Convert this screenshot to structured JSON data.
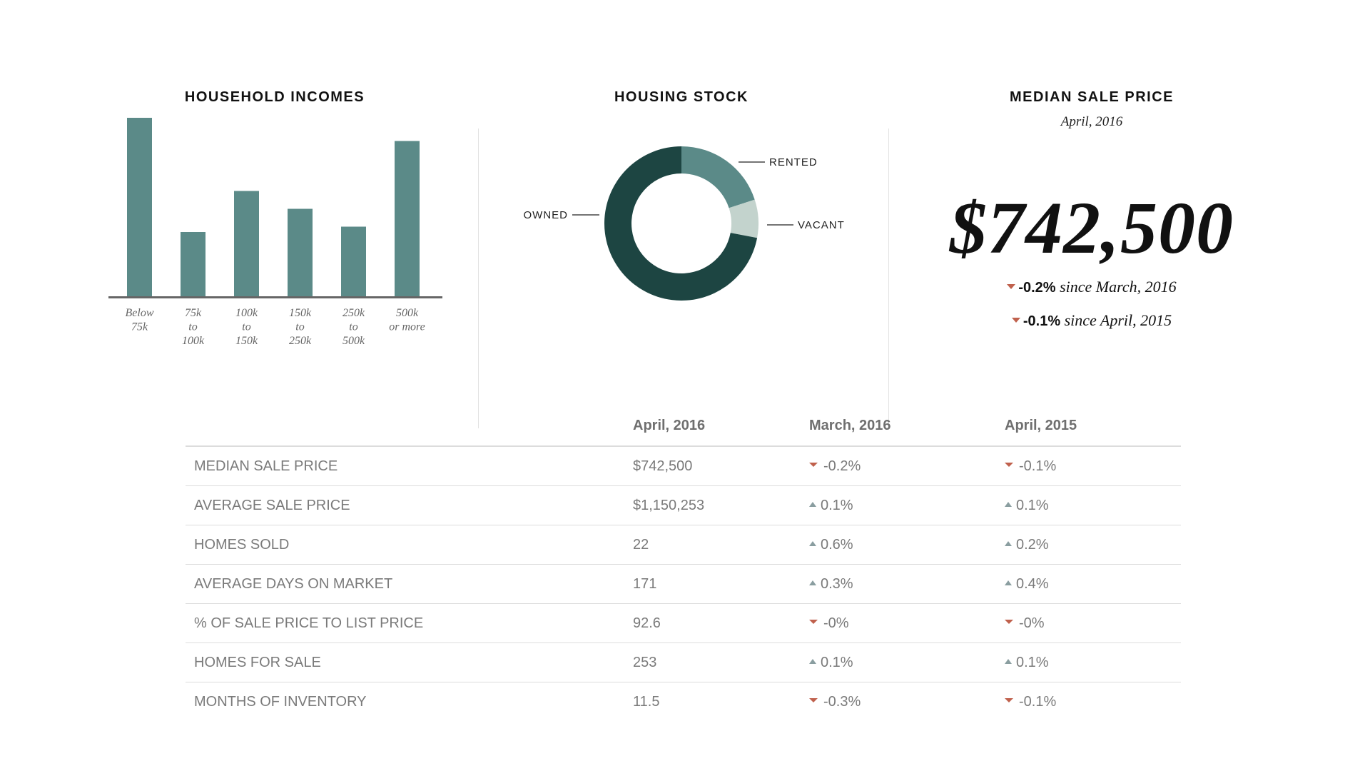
{
  "colors": {
    "bar": "#5b8a88",
    "owned": "#1d4542",
    "rented": "#5b8a88",
    "vacant": "#c3d3cd",
    "down": "#c0614d",
    "up": "#8a9ea0"
  },
  "incomes": {
    "title": "HOUSEHOLD INCOMES"
  },
  "housing": {
    "title": "HOUSING STOCK"
  },
  "price": {
    "title": "MEDIAN SALE PRICE",
    "date": "April, 2016",
    "value": "$742,500",
    "changes": [
      {
        "direction": "down",
        "value": "-0.2%",
        "text": " since March, 2016"
      },
      {
        "direction": "down",
        "value": "-0.1%",
        "text": " since April, 2015"
      }
    ]
  },
  "table": {
    "columns": [
      "",
      "April, 2016",
      "March, 2016",
      "April, 2015"
    ],
    "rows": [
      {
        "metric": "MEDIAN SALE PRICE",
        "current": "$742,500",
        "c1": {
          "dir": "down",
          "val": "-0.2%"
        },
        "c2": {
          "dir": "down",
          "val": "-0.1%"
        }
      },
      {
        "metric": "AVERAGE SALE PRICE",
        "current": "$1,150,253",
        "c1": {
          "dir": "up",
          "val": "0.1%"
        },
        "c2": {
          "dir": "up",
          "val": "0.1%"
        }
      },
      {
        "metric": "HOMES SOLD",
        "current": "22",
        "c1": {
          "dir": "up",
          "val": "0.6%"
        },
        "c2": {
          "dir": "up",
          "val": "0.2%"
        }
      },
      {
        "metric": "AVERAGE DAYS ON MARKET",
        "current": "171",
        "c1": {
          "dir": "up",
          "val": "0.3%"
        },
        "c2": {
          "dir": "up",
          "val": "0.4%"
        }
      },
      {
        "metric": "% OF SALE PRICE TO LIST PRICE",
        "current": "92.6",
        "c1": {
          "dir": "down",
          "val": "-0%"
        },
        "c2": {
          "dir": "down",
          "val": "-0%"
        }
      },
      {
        "metric": "HOMES FOR SALE",
        "current": "253",
        "c1": {
          "dir": "up",
          "val": "0.1%"
        },
        "c2": {
          "dir": "up",
          "val": "0.1%"
        }
      },
      {
        "metric": "MONTHS OF INVENTORY",
        "current": "11.5",
        "c1": {
          "dir": "down",
          "val": "-0.3%"
        },
        "c2": {
          "dir": "down",
          "val": "-0.1%"
        }
      }
    ]
  },
  "chart_data": [
    {
      "type": "bar",
      "title": "HOUSEHOLD INCOMES",
      "categories": [
        [
          "Below",
          "75k"
        ],
        [
          "75k",
          "to",
          "100k"
        ],
        [
          "100k",
          "to",
          "150k"
        ],
        [
          "150k",
          "to",
          "250k"
        ],
        [
          "250k",
          "to",
          "500k"
        ],
        [
          "500k",
          "or more"
        ]
      ],
      "values": [
        100,
        36,
        59,
        49,
        39,
        87
      ],
      "ylim": [
        0,
        100
      ],
      "grid": false,
      "y_axis_labels": false
    },
    {
      "type": "pie",
      "title": "HOUSING STOCK",
      "donut": true,
      "labels": [
        "RENTED",
        "VACANT",
        "OWNED"
      ],
      "values": [
        20,
        8,
        72
      ]
    }
  ]
}
